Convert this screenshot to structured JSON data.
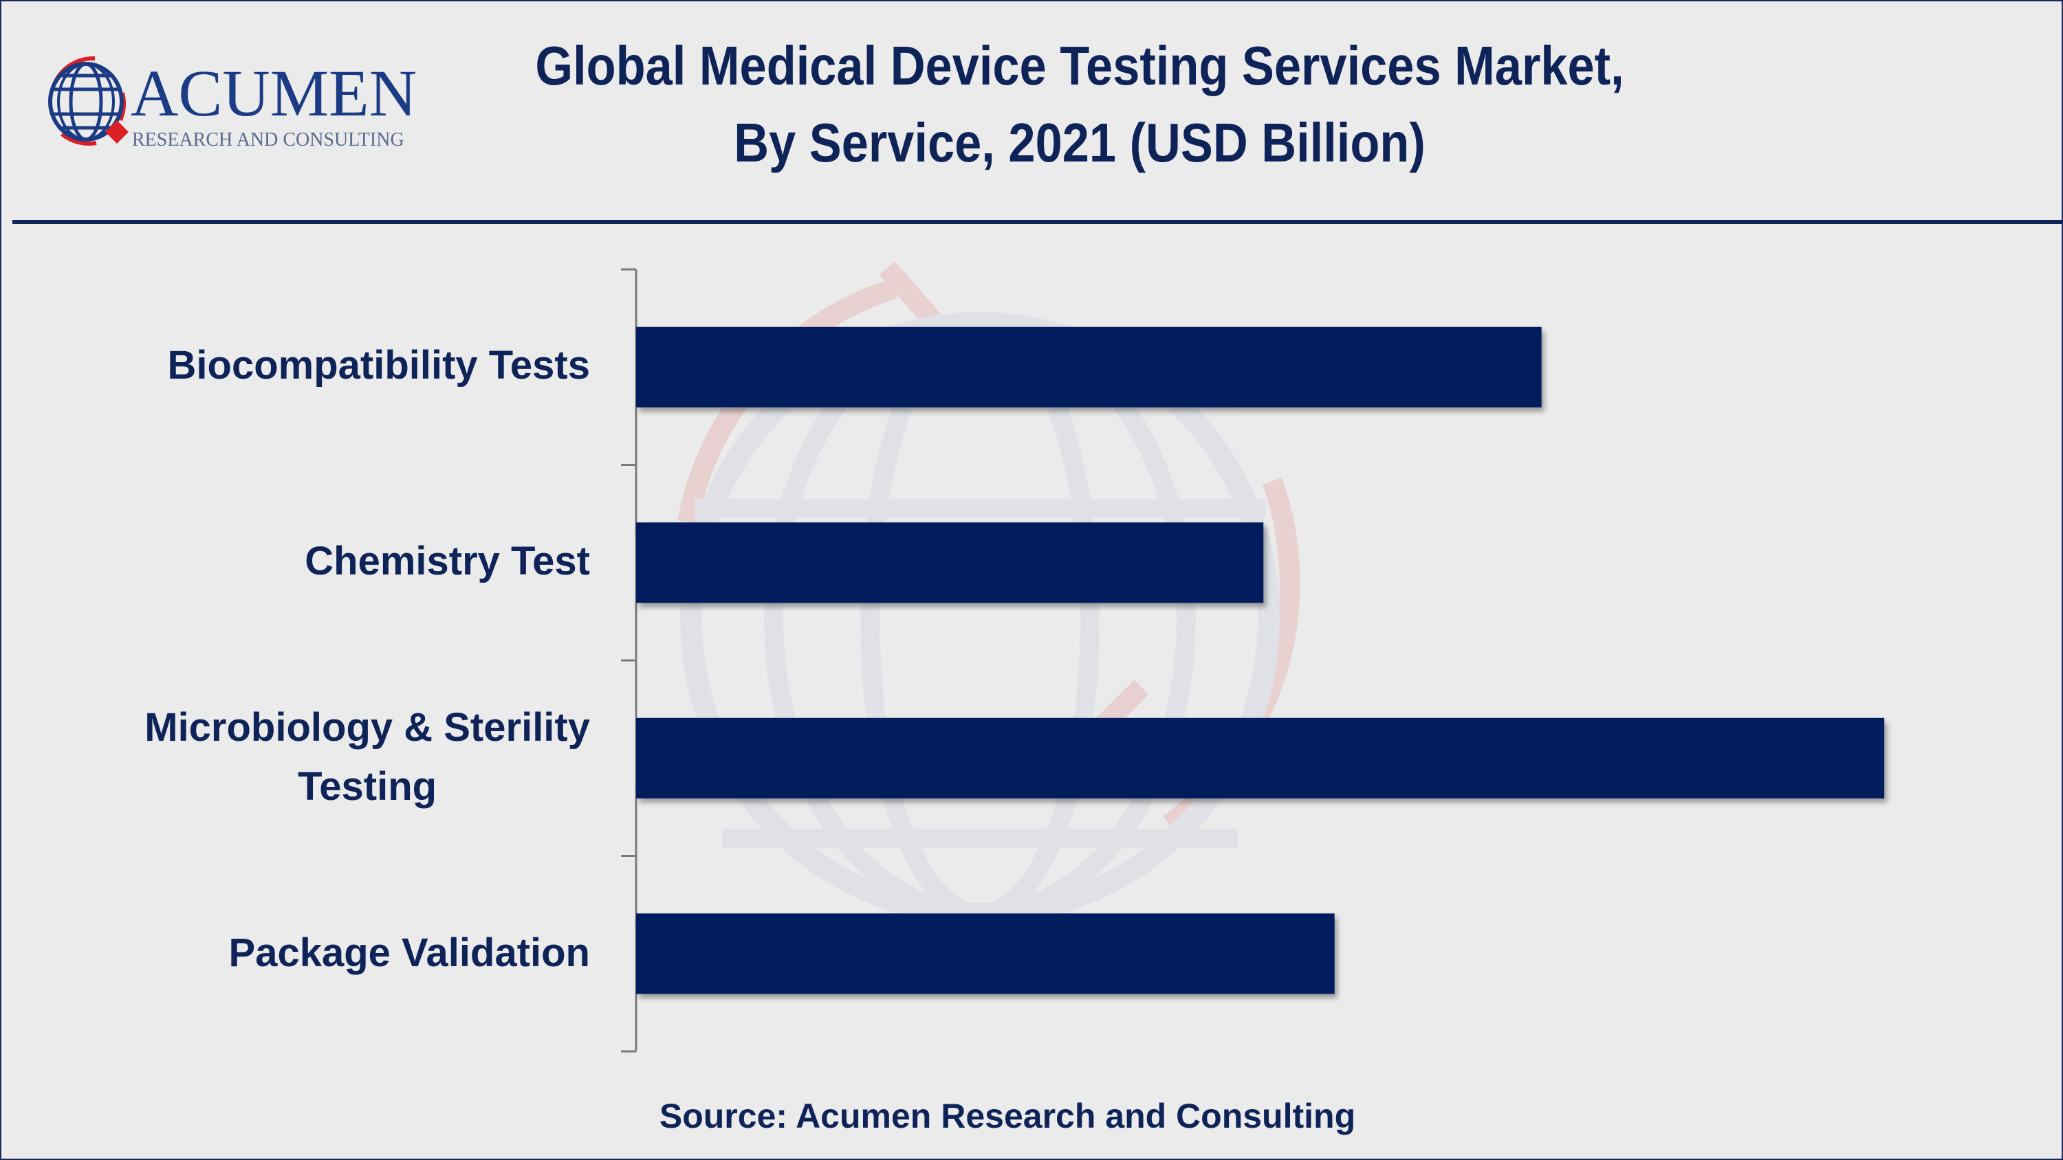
{
  "logo": {
    "name": "ACUMEN",
    "tagline": "RESEARCH AND CONSULTING"
  },
  "chart_data": {
    "type": "bar",
    "orientation": "horizontal",
    "title": "Global Medical Device Testing Services Market, By Service, 2021 (USD Billion)",
    "title_lines": [
      "Global Medical Device Testing Services Market,",
      "By Service, 2021 (USD Billion)"
    ],
    "categories": [
      "Biocompatibility Tests",
      "Chemistry Test",
      "Microbiology & Sterility Testing",
      "Package Validation"
    ],
    "category_lines": [
      [
        "Biocompatibility Tests"
      ],
      [
        "Chemistry Test"
      ],
      [
        "Microbiology & Sterility",
        "Testing"
      ],
      [
        "Package Validation"
      ]
    ],
    "values": [
      1.4,
      0.97,
      1.93,
      1.08
    ],
    "xlim": [
      0,
      2.1
    ],
    "xlabel": "",
    "ylabel": "",
    "grid": false,
    "legend": "none",
    "bar_color": "#001e5c"
  },
  "source": "Source: Acumen Research and Consulting"
}
